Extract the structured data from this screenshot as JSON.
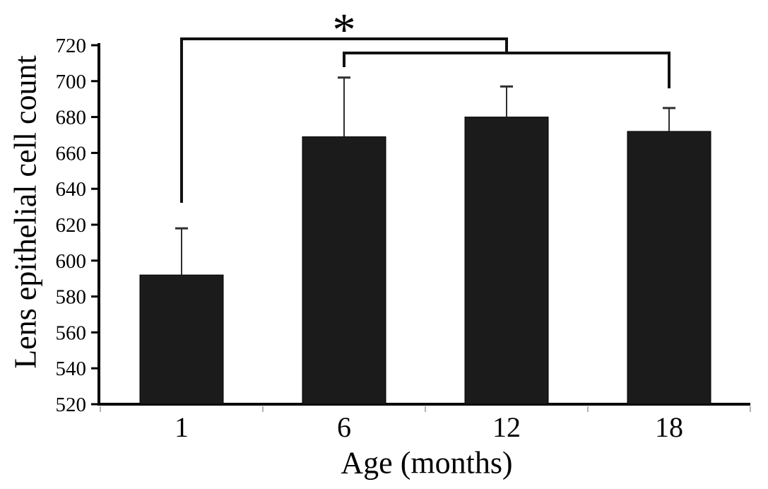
{
  "chart_data": {
    "type": "bar",
    "title": "",
    "xlabel": "Age (months)",
    "ylabel": "Lens epithelial cell count",
    "categories": [
      "1",
      "6",
      "12",
      "18"
    ],
    "values": [
      592,
      669,
      680,
      672
    ],
    "error_upper": [
      26,
      33,
      17,
      13
    ],
    "ylim": [
      520,
      720
    ],
    "ytick_step": 20,
    "yticks": [
      520,
      540,
      560,
      580,
      600,
      620,
      640,
      660,
      680,
      700,
      720
    ],
    "grid": false,
    "legend": "none",
    "bar_color": "#1b1b1b",
    "axis_color": "#000000",
    "error_bar_color": "#2f2f2f",
    "minor_tick_color": "#b3b3b3",
    "significance": [
      {
        "from": "1",
        "to": "12",
        "label": "*"
      },
      {
        "from": "6",
        "to": "18",
        "label": ""
      }
    ]
  }
}
